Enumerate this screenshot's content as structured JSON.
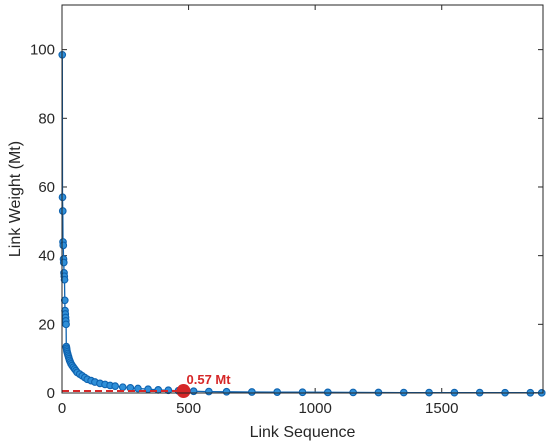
{
  "chart_data": {
    "type": "scatter",
    "xlabel": "Link Sequence",
    "ylabel": "Link Weight (Mt)",
    "xlim": [
      0,
      1900
    ],
    "ylim": [
      0,
      113
    ],
    "xticks": [
      0,
      500,
      1000,
      1500
    ],
    "yticks": [
      0,
      20,
      40,
      60,
      80,
      100
    ],
    "grid": false,
    "colors": {
      "series": "#2f8fd8",
      "series_edge": "#0e63b0",
      "threshold": "#d62728"
    },
    "series": [
      {
        "x": [
          1,
          2,
          3,
          4,
          5,
          6,
          7,
          8,
          9,
          10,
          11,
          12,
          13,
          14,
          15,
          16,
          17,
          18,
          19,
          20,
          22,
          24,
          26,
          28,
          30,
          33,
          36,
          40,
          45,
          50,
          55,
          60,
          70,
          80,
          90,
          100,
          115,
          130,
          150,
          170,
          190,
          210,
          240,
          270,
          300,
          340,
          380,
          420,
          460,
          480,
          520,
          580,
          650,
          750,
          850,
          950,
          1050,
          1150,
          1250,
          1350,
          1450,
          1550,
          1650,
          1750,
          1850,
          1895
        ],
        "y": [
          98.5,
          57,
          53,
          44,
          43,
          39,
          38,
          35,
          34,
          33,
          27,
          24,
          23,
          22,
          21,
          20,
          13.5,
          13,
          12.5,
          12,
          11.5,
          11,
          10.5,
          10,
          9.5,
          9,
          8.5,
          8,
          7.5,
          7,
          6.5,
          6,
          5.5,
          5,
          4.5,
          4,
          3.6,
          3.2,
          2.8,
          2.5,
          2.2,
          2.0,
          1.7,
          1.5,
          1.3,
          1.1,
          0.9,
          0.8,
          0.65,
          0.57,
          0.5,
          0.42,
          0.36,
          0.3,
          0.26,
          0.22,
          0.19,
          0.17,
          0.15,
          0.13,
          0.12,
          0.11,
          0.1,
          0.09,
          0.08,
          0.05
        ]
      }
    ],
    "threshold": {
      "value": 0.57,
      "x_end": 480
    },
    "highlight": {
      "x": 480,
      "y": 0.57,
      "label": "0.57 Mt"
    }
  }
}
